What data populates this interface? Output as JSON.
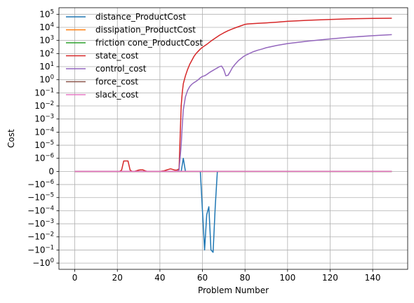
{
  "chart_data": {
    "type": "line",
    "xlabel": "Problem Number",
    "ylabel": "Cost",
    "xlim": [
      -7.45,
      156.45
    ],
    "yscale": "symlog",
    "linthresh": 1e-06,
    "ylim": [
      -3.0,
      316228
    ],
    "grid": true,
    "legend_position": "upper-left",
    "x_ticks": [
      {
        "value": 0,
        "label": "0"
      },
      {
        "value": 20,
        "label": "20"
      },
      {
        "value": 40,
        "label": "40"
      },
      {
        "value": 60,
        "label": "60"
      },
      {
        "value": 80,
        "label": "80"
      },
      {
        "value": 100,
        "label": "100"
      },
      {
        "value": 120,
        "label": "120"
      },
      {
        "value": 140,
        "label": "140"
      }
    ],
    "y_ticks": [
      {
        "value": 100000,
        "label": "10^5"
      },
      {
        "value": 10000,
        "label": "10^4"
      },
      {
        "value": 1000,
        "label": "10^3"
      },
      {
        "value": 100,
        "label": "10^2"
      },
      {
        "value": 10,
        "label": "10^1"
      },
      {
        "value": 1,
        "label": "10^0"
      },
      {
        "value": 0.1,
        "label": "10^-1"
      },
      {
        "value": 0.01,
        "label": "10^-2"
      },
      {
        "value": 0.001,
        "label": "10^-3"
      },
      {
        "value": 0.0001,
        "label": "10^-4"
      },
      {
        "value": 1e-05,
        "label": "10^-5"
      },
      {
        "value": 1e-06,
        "label": "10^-6"
      },
      {
        "value": 0,
        "label": "0"
      },
      {
        "value": -1e-06,
        "label": "−10^-6"
      },
      {
        "value": -1e-05,
        "label": "−10^-5"
      },
      {
        "value": -0.0001,
        "label": "−10^-4"
      },
      {
        "value": -0.001,
        "label": "−10^-3"
      },
      {
        "value": -0.01,
        "label": "−10^-2"
      },
      {
        "value": -0.1,
        "label": "−10^-1"
      },
      {
        "value": -1,
        "label": "−10^0"
      }
    ],
    "series": [
      {
        "name": "distance_ProductCost",
        "color": "#1f77b4",
        "x": [
          0,
          20,
          48,
          49,
          50,
          51,
          52,
          55,
          58,
          59,
          60,
          61,
          62,
          63,
          64,
          65,
          66,
          67,
          80,
          100,
          149
        ],
        "y": [
          0,
          0,
          0,
          0,
          0,
          1e-06,
          0,
          0,
          0,
          0,
          -0.0001,
          -0.1,
          -0.0002,
          -5e-05,
          -0.1,
          -0.15,
          -5e-05,
          0,
          0,
          0,
          0
        ]
      },
      {
        "name": "dissipation_ProductCost",
        "color": "#ff7f0e",
        "x": [
          0,
          149
        ],
        "y": [
          0,
          0
        ]
      },
      {
        "name": "friction cone_ProductCost",
        "color": "#2ca02c",
        "x": [
          0,
          149
        ],
        "y": [
          0,
          0
        ]
      },
      {
        "name": "state_cost",
        "color": "#d62728",
        "x": [
          0,
          15,
          19,
          21,
          22,
          23,
          24,
          25,
          26,
          27,
          28,
          29,
          30,
          31,
          32,
          33,
          34,
          35,
          38,
          40,
          42,
          43,
          44,
          45,
          46,
          47,
          48,
          49,
          50,
          50.5,
          51,
          52,
          53,
          54,
          55,
          56,
          57,
          58,
          59,
          60,
          62,
          64,
          66,
          68,
          70,
          72,
          74,
          76,
          78,
          80,
          81,
          82,
          84,
          86,
          90,
          95,
          100,
          110,
          120,
          130,
          140,
          149
        ],
        "y": [
          0,
          0,
          0,
          0,
          1e-07,
          8e-07,
          8e-07,
          8e-07,
          1e-07,
          0,
          0,
          5e-08,
          1e-07,
          1.2e-07,
          1.2e-07,
          5e-08,
          0,
          0,
          0,
          0,
          5e-08,
          1e-07,
          1.5e-07,
          2e-07,
          1.5e-07,
          1e-07,
          1e-07,
          2e-07,
          0.01,
          0.1,
          0.5,
          2,
          6,
          15,
          30,
          60,
          100,
          150,
          220,
          300,
          500,
          900,
          1500,
          2500,
          3800,
          5500,
          7500,
          10000,
          13000,
          17000,
          18000,
          18500,
          19500,
          20500,
          22000,
          25000,
          29000,
          35000,
          40000,
          45000,
          48000,
          50000
        ]
      },
      {
        "name": "control_cost",
        "color": "#9467bd",
        "x": [
          0,
          48,
          49,
          50,
          50.5,
          51,
          52,
          53,
          54,
          55,
          56,
          57,
          58,
          59,
          60,
          61,
          62,
          63,
          64,
          65,
          66,
          67,
          68,
          69,
          70,
          71,
          72,
          73,
          74,
          75,
          76,
          77,
          78,
          79,
          80,
          82,
          84,
          86,
          88,
          90,
          95,
          100,
          110,
          120,
          130,
          140,
          149
        ],
        "y": [
          0,
          0,
          1e-07,
          1e-05,
          0.0003,
          0.005,
          0.05,
          0.15,
          0.3,
          0.45,
          0.6,
          0.75,
          1.0,
          1.4,
          1.8,
          2.0,
          2.5,
          3.3,
          4.2,
          5.2,
          6.5,
          8.0,
          10,
          11,
          6,
          2,
          2.2,
          4,
          8,
          13,
          20,
          30,
          40,
          55,
          70,
          100,
          140,
          180,
          220,
          280,
          420,
          580,
          900,
          1300,
          1800,
          2300,
          2800
        ]
      },
      {
        "name": "force_cost",
        "color": "#8c564b",
        "x": [
          0,
          149
        ],
        "y": [
          0,
          0
        ]
      },
      {
        "name": "slack_cost",
        "color": "#e377c2",
        "x": [
          0,
          149
        ],
        "y": [
          0,
          0
        ]
      }
    ]
  }
}
